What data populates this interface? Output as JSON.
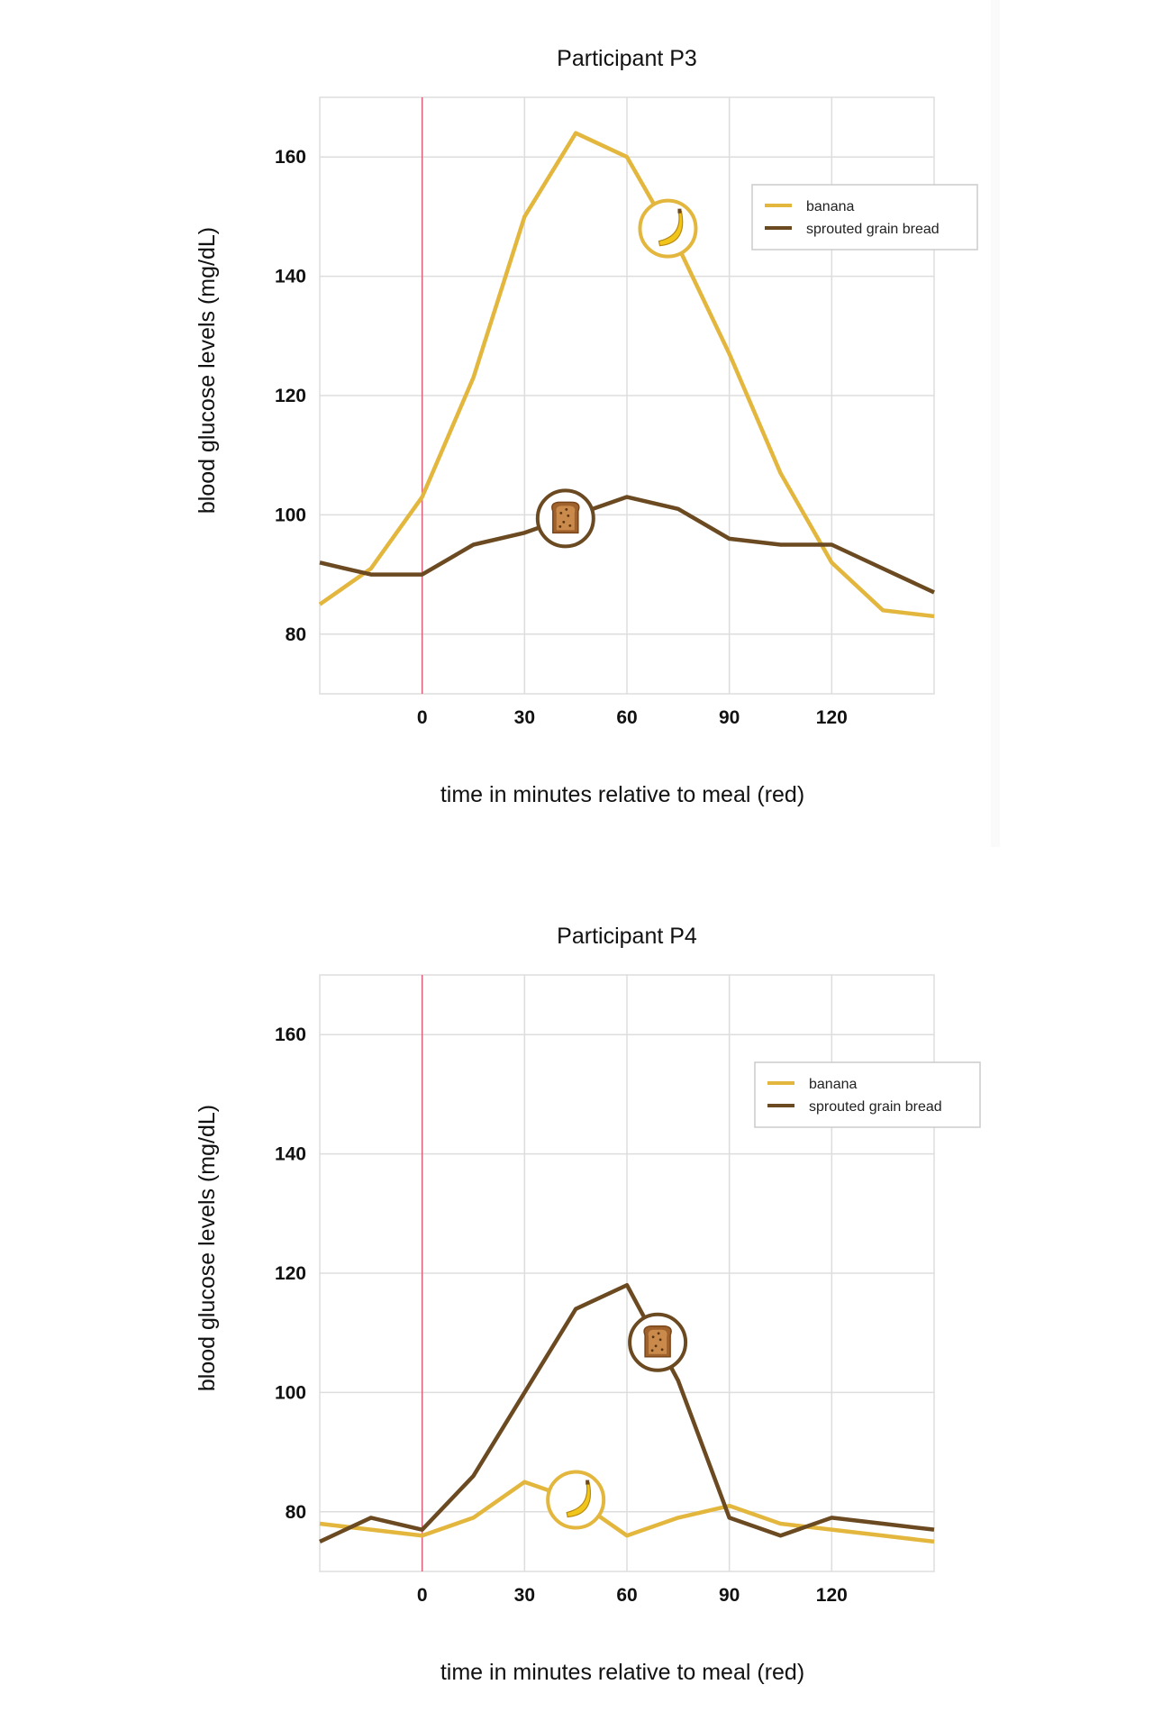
{
  "colors": {
    "banana": "#e3b73d",
    "bread": "#6b4a22",
    "meal_line": "#d9607a",
    "grid": "#dddddd",
    "text": "#111111"
  },
  "chart_data": [
    {
      "type": "line",
      "title": "Participant P3",
      "xlabel": "time in minutes relative to meal (red)",
      "ylabel": "blood glucose levels (mg/dL)",
      "xlim": [
        -50,
        250
      ],
      "ylim": [
        70,
        170
      ],
      "xticks": [
        0,
        50,
        100,
        150,
        200
      ],
      "xtick_labels": [
        "0",
        "30",
        "60",
        "90",
        "120"
      ],
      "yticks": [
        80,
        100,
        120,
        140,
        160
      ],
      "meal_x": 0,
      "legend": "top-right",
      "series": [
        {
          "name": "banana",
          "color_key": "banana",
          "icon": "banana-icon",
          "x": [
            -50,
            -25,
            0,
            25,
            50,
            75,
            100,
            125,
            150,
            175,
            200,
            225,
            250
          ],
          "y": [
            85,
            91,
            103,
            123,
            150,
            164,
            160,
            145,
            127,
            107,
            92,
            84,
            83
          ],
          "marker_x": 120
        },
        {
          "name": "sprouted grain bread",
          "color_key": "bread",
          "icon": "bread-icon",
          "x": [
            -50,
            -25,
            0,
            25,
            50,
            75,
            100,
            125,
            150,
            175,
            200,
            225,
            250
          ],
          "y": [
            92,
            90,
            90,
            95,
            97,
            100,
            103,
            101,
            96,
            95,
            95,
            91,
            87
          ],
          "marker_x": 70
        }
      ]
    },
    {
      "type": "line",
      "title": "Participant P4",
      "xlabel": "time in minutes relative to meal (red)",
      "ylabel": "blood glucose levels (mg/dL)",
      "xlim": [
        -50,
        250
      ],
      "ylim": [
        70,
        170
      ],
      "xticks": [
        0,
        50,
        100,
        150,
        200
      ],
      "xtick_labels": [
        "0",
        "30",
        "60",
        "90",
        "120"
      ],
      "yticks": [
        80,
        100,
        120,
        140,
        160
      ],
      "meal_x": 0,
      "legend": "top-right",
      "series": [
        {
          "name": "banana",
          "color_key": "banana",
          "icon": "banana-icon",
          "x": [
            -50,
            -25,
            0,
            25,
            50,
            75,
            100,
            125,
            150,
            175,
            200,
            225,
            250
          ],
          "y": [
            78,
            77,
            76,
            79,
            85,
            82,
            76,
            79,
            81,
            78,
            77,
            76,
            75
          ],
          "marker_x": 75
        },
        {
          "name": "sprouted grain bread",
          "color_key": "bread",
          "icon": "bread-icon",
          "x": [
            -50,
            -25,
            0,
            25,
            50,
            75,
            100,
            125,
            150,
            175,
            200,
            225,
            250
          ],
          "y": [
            75,
            79,
            77,
            86,
            100,
            114,
            118,
            102,
            79,
            76,
            79,
            78,
            77
          ],
          "marker_x": 115
        }
      ]
    }
  ]
}
